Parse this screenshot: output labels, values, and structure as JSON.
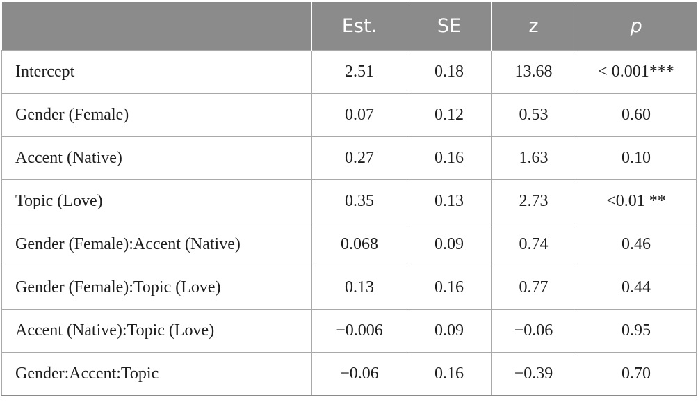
{
  "table": {
    "headers": [
      "",
      "Est.",
      "SE",
      "z",
      "p"
    ],
    "rows": [
      [
        "Intercept",
        "2.51",
        "0.18",
        "13.68",
        "< 0.001***"
      ],
      [
        "Gender (Female)",
        "0.07",
        "0.12",
        "0.53",
        "0.60"
      ],
      [
        "Accent (Native)",
        "0.27",
        "0.16",
        "1.63",
        "0.10"
      ],
      [
        "Topic (Love)",
        "0.35",
        "0.13",
        "2.73",
        "<0.01 **"
      ],
      [
        "Gender (Female):Accent (Native)",
        "0.068",
        "0.09",
        "0.74",
        "0.46"
      ],
      [
        "Gender (Female):Topic (Love)",
        "0.13",
        "0.16",
        "0.77",
        "0.44"
      ],
      [
        "Accent (Native):Topic (Love)",
        "−0.006",
        "0.09",
        "−0.06",
        "0.95"
      ],
      [
        "Gender:Accent:Topic",
        "−0.06",
        "0.16",
        "−0.39",
        "0.70"
      ]
    ]
  }
}
